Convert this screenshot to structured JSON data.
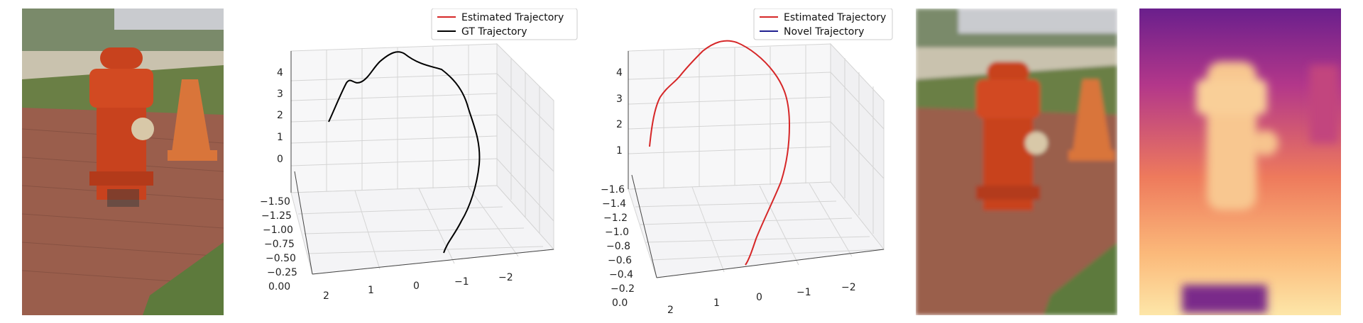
{
  "chart_data": [
    {
      "type": "line",
      "projection": "3d",
      "legend_placement": "top-right",
      "grid": true,
      "legend": [
        {
          "label": "Estimated Trajectory",
          "color": "#d62728"
        },
        {
          "label": "GT Trajectory",
          "color": "#000000"
        }
      ],
      "z_ticks": [
        "4",
        "3",
        "2",
        "1",
        "0"
      ],
      "y_ticks": [
        "−1.50",
        "−1.25",
        "−1.00",
        "−0.75",
        "−0.50",
        "−0.25",
        "0.00"
      ],
      "x_ticks": [
        "2",
        "1",
        "0",
        "−1",
        "−2"
      ],
      "series": [
        {
          "name": "GT Trajectory",
          "color": "#000000"
        }
      ]
    },
    {
      "type": "line",
      "projection": "3d",
      "legend_placement": "top-right",
      "grid": true,
      "legend": [
        {
          "label": "Estimated Trajectory",
          "color": "#d62728"
        },
        {
          "label": "Novel Trajectory",
          "color": "#1f1f8f"
        }
      ],
      "z_ticks": [
        "4",
        "3",
        "2",
        "1"
      ],
      "y_ticks": [
        "−1.6",
        "−1.4",
        "−1.2",
        "−1.0",
        "−0.8",
        "−0.6",
        "−0.4",
        "−0.2",
        "0.0"
      ],
      "x_ticks": [
        "2",
        "1",
        "0",
        "−1",
        "−2"
      ],
      "series": [
        {
          "name": "Estimated Trajectory",
          "color": "#d62728"
        }
      ]
    }
  ],
  "images": {
    "left_photo": "fire-hydrant-photo",
    "right_photo": "fire-hydrant-render",
    "depth": "depth-map"
  },
  "colors": {
    "hydrant": "#c8421e",
    "brick": "#9a5a48",
    "grass": "#5d7a3c",
    "grid": "#cccccc"
  }
}
